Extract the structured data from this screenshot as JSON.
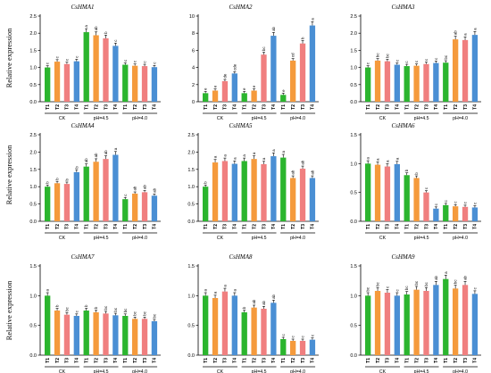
{
  "figure": {
    "ylabel": "Relative expression",
    "sample_labels": [
      "T1",
      "T2",
      "T3",
      "T4"
    ],
    "group_labels": [
      "CK",
      "pH=4.5",
      "pH=4.0"
    ],
    "colors": [
      "#2BB52E",
      "#F59A3C",
      "#F07F7F",
      "#4A8FD4"
    ]
  },
  "chart_data": [
    {
      "type": "bar",
      "title": "CsHMA1",
      "categories": [
        "CK T1",
        "CK T2",
        "CK T3",
        "CK T4",
        "pH=4.5 T1",
        "pH=4.5 T2",
        "pH=4.5 T3",
        "pH=4.5 T4",
        "pH=4.0 T1",
        "pH=4.0 T2",
        "pH=4.0 T3",
        "pH=4.0 T4"
      ],
      "values": [
        1.0,
        1.17,
        1.1,
        1.18,
        2.03,
        1.94,
        1.85,
        1.63,
        1.08,
        1.05,
        1.04,
        1.01
      ],
      "labels": [
        "c",
        "c",
        "c",
        "c",
        "a",
        "ab",
        "b",
        "c",
        "c",
        "c",
        "c",
        "c"
      ],
      "ylim": [
        0,
        2.5
      ],
      "yticks": [
        0.0,
        0.5,
        1.0,
        1.5,
        2.0,
        2.5
      ],
      "ytick_labels": [
        "0.0",
        "0.5",
        "1.0",
        "1.5",
        "2.0",
        "2.5"
      ]
    },
    {
      "type": "bar",
      "title": "CsHMA2",
      "categories": [
        "CK T1",
        "CK T2",
        "CK T3",
        "CK T4",
        "pH=4.5 T1",
        "pH=4.5 T2",
        "pH=4.5 T3",
        "pH=4.5 T4",
        "pH=4.0 T1",
        "pH=4.0 T2",
        "pH=4.0 T3",
        "pH=4.0 T4"
      ],
      "values": [
        1.0,
        1.3,
        2.4,
        3.3,
        1.0,
        1.3,
        5.5,
        7.7,
        0.8,
        4.8,
        6.8,
        8.9
      ],
      "labels": [
        "e",
        "e",
        "de",
        "cde",
        "e",
        "e",
        "bc",
        "ab",
        "e",
        "cd",
        "b",
        "a"
      ],
      "ylim": [
        0,
        10
      ],
      "yticks": [
        0,
        2,
        4,
        6,
        8,
        10
      ],
      "ytick_labels": [
        "0",
        "2",
        "4",
        "6",
        "8",
        "10"
      ]
    },
    {
      "type": "bar",
      "title": "CsHMA3",
      "categories": [
        "CK T1",
        "CK T2",
        "CK T3",
        "CK T4",
        "pH=4.5 T1",
        "pH=4.5 T2",
        "pH=4.5 T3",
        "pH=4.5 T4",
        "pH=4.0 T1",
        "pH=4.0 T2",
        "pH=4.0 T3",
        "pH=4.0 T4"
      ],
      "values": [
        1.0,
        1.2,
        1.18,
        1.08,
        1.04,
        1.05,
        1.1,
        1.13,
        1.14,
        1.82,
        1.8,
        1.95
      ],
      "labels": [
        "c",
        "bc",
        "bc",
        "c",
        "c",
        "c",
        "c",
        "c",
        "bc",
        "ab",
        "a",
        "a"
      ],
      "ylim": [
        0,
        2.5
      ],
      "yticks": [
        0.0,
        0.5,
        1.0,
        1.5,
        2.0,
        2.5
      ],
      "ytick_labels": [
        "0.0",
        "0.5",
        "1.0",
        "1.5",
        "2.0",
        "2.5"
      ]
    },
    {
      "type": "bar",
      "title": "CsHMA4",
      "categories": [
        "CK T1",
        "CK T2",
        "CK T3",
        "CK T4",
        "pH=4.5 T1",
        "pH=4.5 T2",
        "pH=4.5 T3",
        "pH=4.5 T4",
        "pH=4.0 T1",
        "pH=4.0 T2",
        "pH=4.0 T3",
        "pH=4.0 T4"
      ],
      "values": [
        1.0,
        1.1,
        1.08,
        1.42,
        1.58,
        1.72,
        1.8,
        1.92,
        0.64,
        0.8,
        0.84,
        0.74
      ],
      "labels": [
        "b",
        "b",
        "b",
        "b",
        "ab",
        "ab",
        "ab",
        "a",
        "c",
        "ab",
        "ab",
        "ab"
      ],
      "ylim": [
        0,
        2.5
      ],
      "yticks": [
        0.0,
        0.5,
        1.0,
        1.5,
        2.0,
        2.5
      ],
      "ytick_labels": [
        "0.0",
        "0.5",
        "1.0",
        "1.5",
        "2.0",
        "2.5"
      ]
    },
    {
      "type": "bar",
      "title": "CsHMA5",
      "categories": [
        "CK T1",
        "CK T2",
        "CK T3",
        "CK T4",
        "pH=4.5 T1",
        "pH=4.5 T2",
        "pH=4.5 T3",
        "pH=4.5 T4",
        "pH=4.0 T1",
        "pH=4.0 T2",
        "pH=4.0 T3",
        "pH=4.0 T4"
      ],
      "values": [
        1.0,
        1.7,
        1.74,
        1.66,
        1.74,
        1.8,
        1.65,
        1.88,
        1.84,
        1.25,
        1.52,
        1.25
      ],
      "labels": [
        "b",
        "a",
        "a",
        "a",
        "a",
        "a",
        "a",
        "a",
        "a",
        "ab",
        "ab",
        "ab"
      ],
      "ylim": [
        0,
        2.5
      ],
      "yticks": [
        0.0,
        0.5,
        1.0,
        1.5,
        2.0,
        2.5
      ],
      "ytick_labels": [
        "0.0",
        "0.5",
        "1.0",
        "1.5",
        "2.0",
        "2.5"
      ]
    },
    {
      "type": "bar",
      "title": "CsHMA6",
      "categories": [
        "CK T1",
        "CK T2",
        "CK T3",
        "CK T4",
        "pH=4.5 T1",
        "pH=4.5 T2",
        "pH=4.5 T3",
        "pH=4.5 T4",
        "pH=4.0 T1",
        "pH=4.0 T2",
        "pH=4.0 T3",
        "pH=4.0 T4"
      ],
      "values": [
        1.0,
        0.98,
        0.95,
        0.99,
        0.8,
        0.75,
        0.5,
        0.22,
        0.28,
        0.26,
        0.25,
        0.24
      ],
      "labels": [
        "a",
        "a",
        "a",
        "a",
        "b",
        "b",
        "c",
        "c",
        "c",
        "c",
        "c",
        "c"
      ],
      "ylim": [
        0,
        1.5
      ],
      "yticks": [
        0.0,
        0.5,
        1.0,
        1.5
      ],
      "ytick_labels": [
        "0.0",
        "0.5",
        "1.0",
        "1.5"
      ]
    },
    {
      "type": "bar",
      "title": "CsHMA7",
      "categories": [
        "CK T1",
        "CK T2",
        "CK T3",
        "CK T4",
        "pH=4.5 T1",
        "pH=4.5 T2",
        "pH=4.5 T3",
        "pH=4.5 T4",
        "pH=4.0 T1",
        "pH=4.0 T2",
        "pH=4.0 T3",
        "pH=4.0 T4"
      ],
      "values": [
        1.0,
        0.75,
        0.68,
        0.66,
        0.75,
        0.72,
        0.7,
        0.67,
        0.66,
        0.61,
        0.61,
        0.57
      ],
      "labels": [
        "a",
        "b",
        "bc",
        "c",
        "b",
        "b",
        "bc",
        "bc",
        "bc",
        "bc",
        "bc",
        "bc"
      ],
      "ylim": [
        0,
        1.5
      ],
      "yticks": [
        0.0,
        0.5,
        1.0,
        1.5
      ],
      "ytick_labels": [
        "0.0",
        "0.5",
        "1.0",
        "1.5"
      ]
    },
    {
      "type": "bar",
      "title": "CsHMA8",
      "categories": [
        "CK T1",
        "CK T2",
        "CK T3",
        "CK T4",
        "pH=4.5 T1",
        "pH=4.5 T2",
        "pH=4.5 T3",
        "pH=4.5 T4",
        "pH=4.0 T1",
        "pH=4.0 T2",
        "pH=4.0 T3",
        "pH=4.0 T4"
      ],
      "values": [
        1.0,
        0.96,
        1.07,
        1.0,
        0.72,
        0.8,
        0.78,
        0.88,
        0.27,
        0.24,
        0.24,
        0.26
      ],
      "labels": [
        "a",
        "a",
        "a",
        "a",
        "b",
        "ab",
        "ab",
        "ab",
        "c",
        "c",
        "c",
        "c"
      ],
      "ylim": [
        0,
        1.5
      ],
      "yticks": [
        0.0,
        0.5,
        1.0,
        1.5
      ],
      "ytick_labels": [
        "0.0",
        "0.5",
        "1.0",
        "1.5"
      ]
    },
    {
      "type": "bar",
      "title": "CsHMA9",
      "categories": [
        "CK T1",
        "CK T2",
        "CK T3",
        "CK T4",
        "pH=4.5 T1",
        "pH=4.5 T2",
        "pH=4.5 T3",
        "pH=4.5 T4",
        "pH=4.0 T1",
        "pH=4.0 T2",
        "pH=4.0 T3",
        "pH=4.0 T4"
      ],
      "values": [
        1.0,
        1.08,
        1.05,
        1.0,
        1.02,
        1.1,
        1.08,
        1.18,
        1.28,
        1.12,
        1.18,
        1.03
      ],
      "labels": [
        "bc",
        "bc",
        "c",
        "c",
        "bc",
        "bc",
        "bc",
        "ab",
        "a",
        "bc",
        "ab",
        "c"
      ],
      "ylim": [
        0,
        1.5
      ],
      "yticks": [
        0.0,
        0.5,
        1.0,
        1.5
      ],
      "ytick_labels": [
        "0.0",
        "0.5",
        "1.0",
        "1.5"
      ]
    }
  ]
}
